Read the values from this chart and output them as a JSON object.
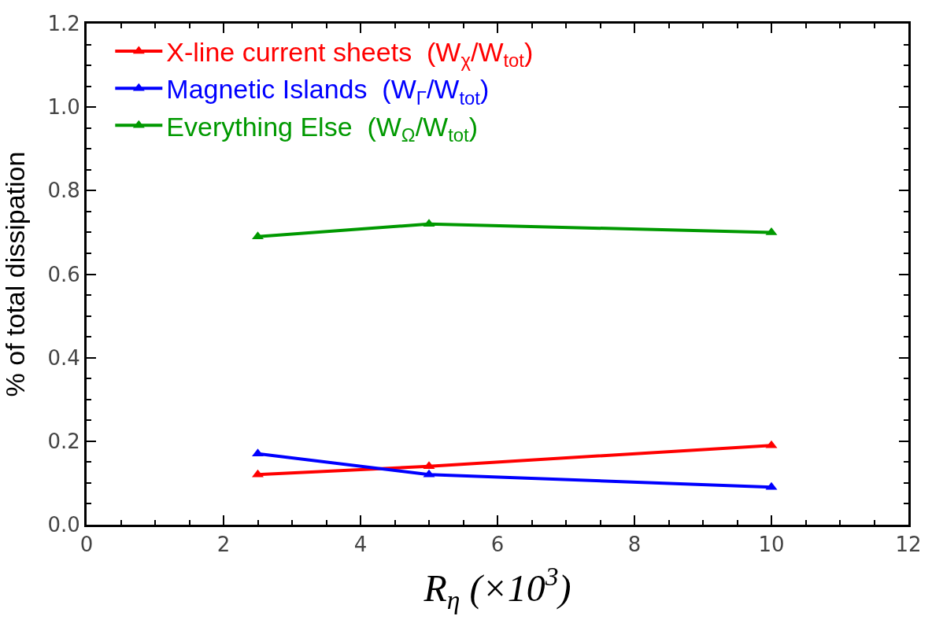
{
  "chart_data": {
    "type": "line",
    "x": [
      2.5,
      5,
      10
    ],
    "series": [
      {
        "name": "X-line current sheets  (W$_{χ}$/W$_{tot}$)",
        "color": "#ff0000",
        "values": [
          0.12,
          0.14,
          0.19
        ]
      },
      {
        "name": "Magnetic Islands  (W$_{Γ}$/W$_{tot}$)",
        "color": "#0000ff",
        "values": [
          0.17,
          0.12,
          0.09
        ]
      },
      {
        "name": "Everything Else  (W$_{Ω}$/W$_{tot}$)",
        "color": "#009900",
        "values": [
          0.69,
          0.72,
          0.7
        ]
      }
    ],
    "xlabel": "R$_{η}$ (×10$^{3}$)",
    "ylabel": "% of total dissipation",
    "xlim": [
      0,
      12
    ],
    "xticks": [
      0,
      2,
      4,
      6,
      8,
      10,
      12
    ],
    "ylim": [
      0,
      1.2
    ],
    "yticks": [
      {
        "value": 0,
        "label": "0.0"
      },
      {
        "value": 0.2,
        "label": "0.2"
      },
      {
        "value": 0.4,
        "label": "0.4"
      },
      {
        "value": 0.6,
        "label": "0.6"
      },
      {
        "value": 0.8,
        "label": "0.8"
      },
      {
        "value": 1.0,
        "label": "1.0"
      },
      {
        "value": 1.2,
        "label": "1.2"
      }
    ],
    "legend": "top left",
    "marker": "triangle",
    "line_style": "solid"
  }
}
